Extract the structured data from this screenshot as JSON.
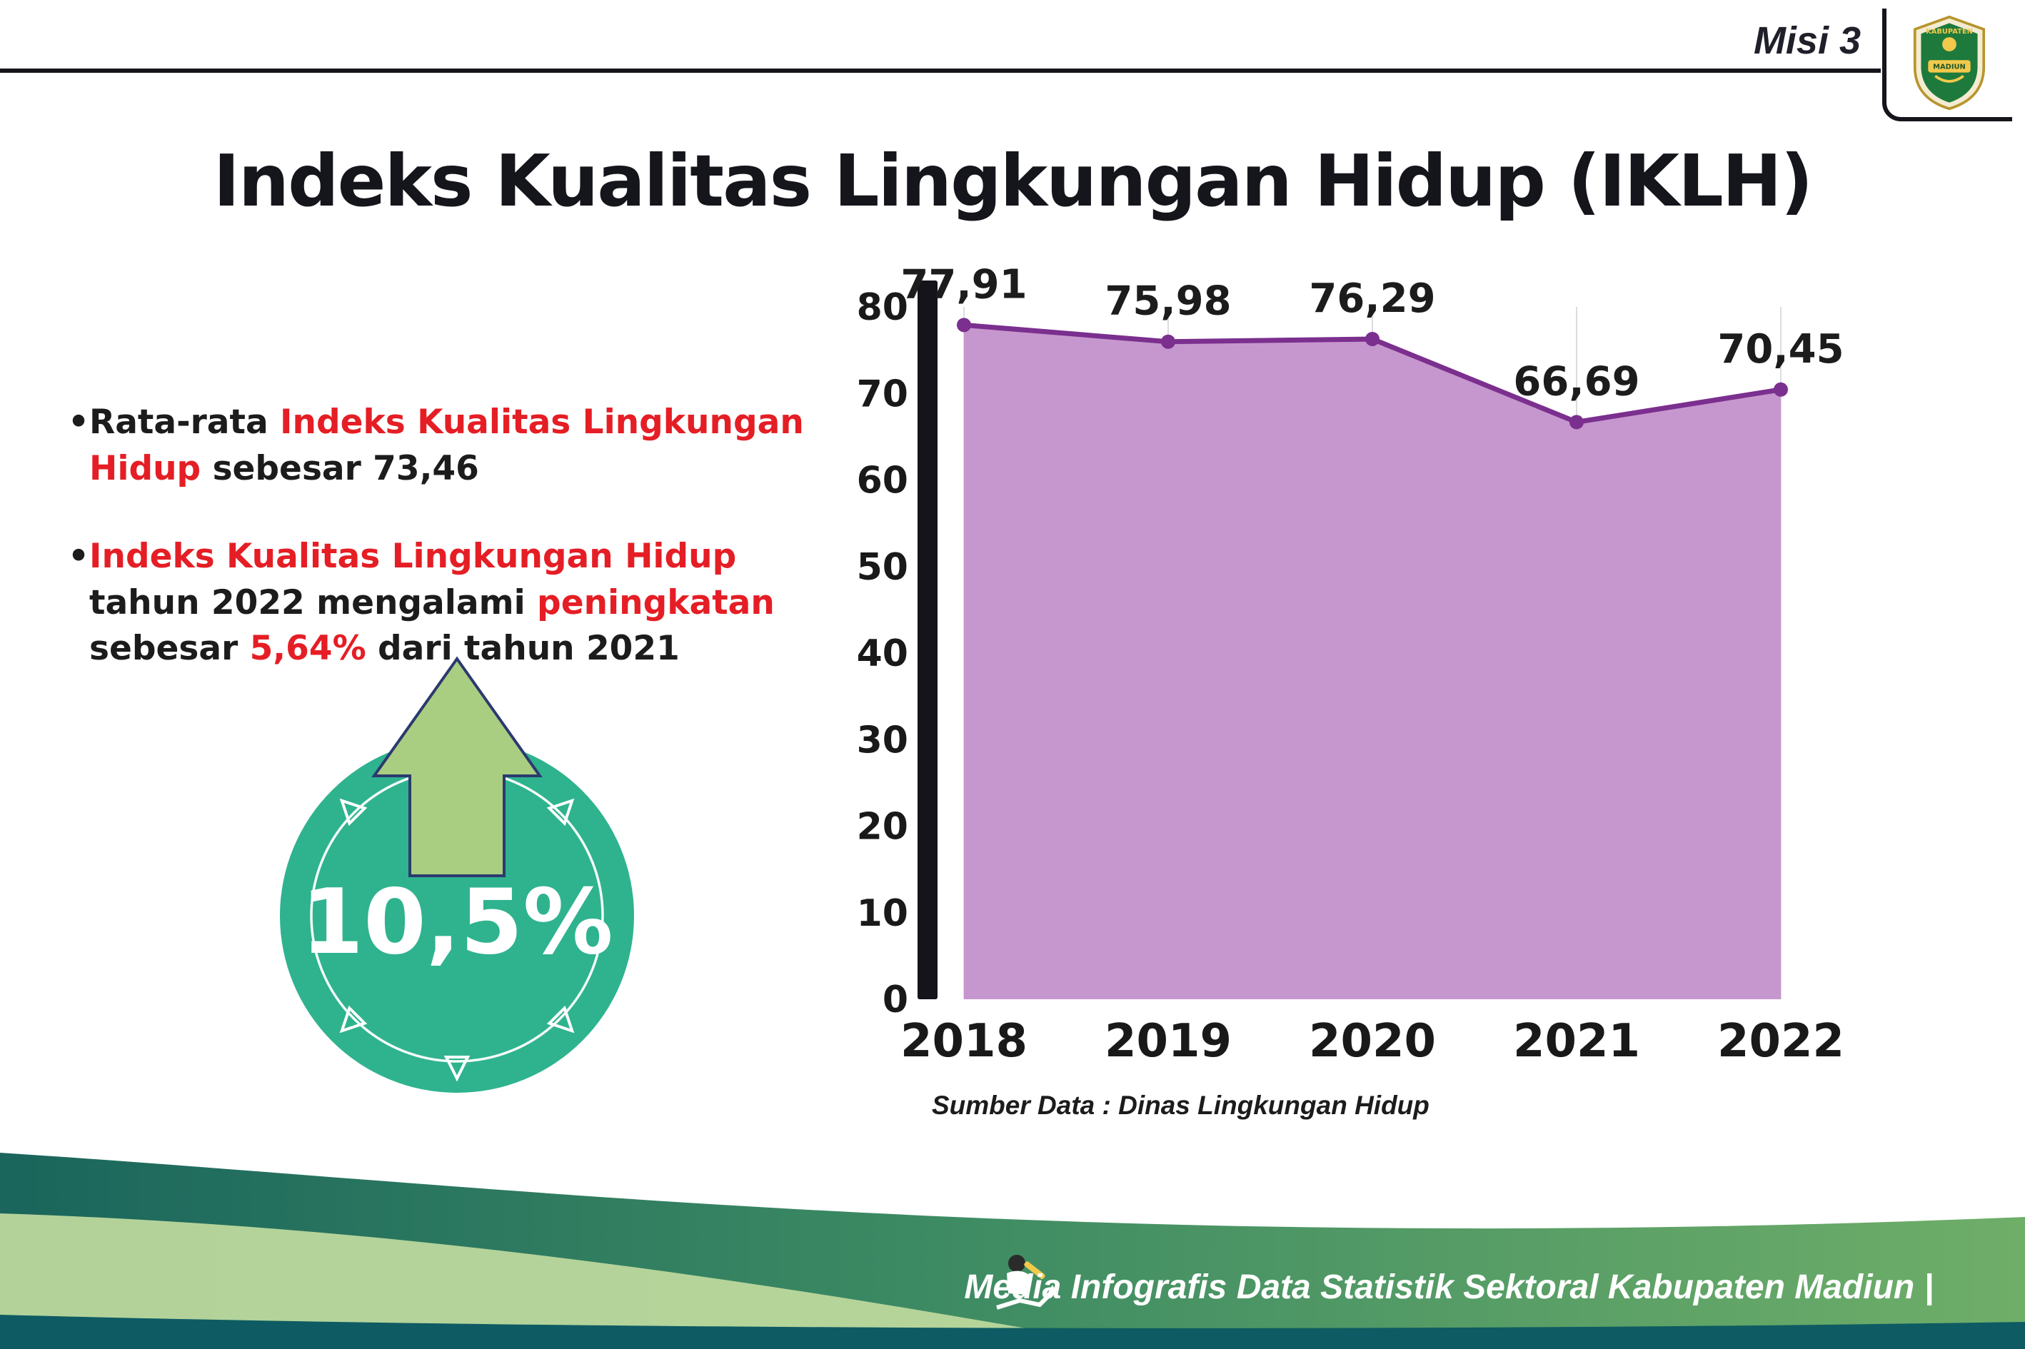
{
  "header": {
    "misi_label": "Misi 3",
    "title": "Indeks Kualitas Lingkungan Hidup (IKLH)",
    "logo": {
      "text_top": "KABUPATEN",
      "text_bottom": "MADIUN"
    }
  },
  "bullets": {
    "marker": "•",
    "items": [
      {
        "segments": [
          {
            "text": "Rata-rata ",
            "color": "dark"
          },
          {
            "text": "Indeks Kualitas Lingkungan Hidup",
            "color": "red"
          },
          {
            "text": " sebesar 73,46",
            "color": "dark"
          }
        ]
      },
      {
        "segments": [
          {
            "text": "Indeks Kualitas Lingkungan Hidup",
            "color": "red"
          },
          {
            "text": " tahun 2022 mengalami ",
            "color": "dark"
          },
          {
            "text": "peningkatan",
            "color": "red"
          },
          {
            "text": " sebesar ",
            "color": "dark"
          },
          {
            "text": "5,64%",
            "color": "red"
          },
          {
            "text": " dari tahun 2021",
            "color": "dark"
          }
        ]
      }
    ]
  },
  "badge": {
    "value": "10,5%",
    "circle_color": "#2eb38e",
    "arrow_color": "#a9ce82"
  },
  "chart_data": {
    "type": "area",
    "title": "",
    "categories": [
      "2018",
      "2019",
      "2020",
      "2021",
      "2022"
    ],
    "values": [
      77.91,
      75.98,
      76.29,
      66.69,
      70.45
    ],
    "value_labels": [
      "77,91",
      "75,98",
      "76,29",
      "66,69",
      "70,45"
    ],
    "xlabel": "",
    "ylabel": "",
    "ylim": [
      0,
      80
    ],
    "yticks": [
      0,
      10,
      20,
      30,
      40,
      50,
      60,
      70,
      80
    ],
    "grid": "vertical-light",
    "legend": "none",
    "line_color": "#7b2f8e",
    "fill_color": "#c697ce",
    "source": "Sumber Data : Dinas Lingkungan Hidup"
  },
  "footer": {
    "caption": "Media Infografis Data Statistik Sektoral Kabupaten Madiun |"
  }
}
